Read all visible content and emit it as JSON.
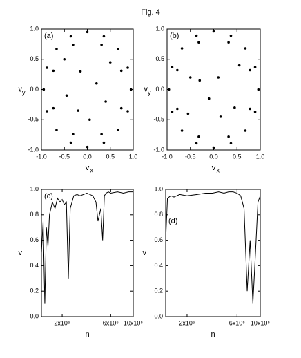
{
  "title": "Fig. 4",
  "chart_data": [
    {
      "type": "scatter",
      "label": "(a)",
      "color": "#000000",
      "xlabel": "v",
      "xlabel_sub": "x",
      "ylabel": "v",
      "ylabel_sub": "y",
      "xlim": [
        -1,
        1
      ],
      "ylim": [
        -1,
        1
      ],
      "xticks": [
        {
          "value": -1,
          "label": "-1.0"
        },
        {
          "value": -0.5,
          "label": "-0.5"
        },
        {
          "value": 0,
          "label": "0.0"
        },
        {
          "value": 0.5,
          "label": "0.5"
        },
        {
          "value": 1,
          "label": "1.0"
        }
      ],
      "yticks": [
        {
          "value": -1,
          "label": "-1.0"
        },
        {
          "value": -0.5,
          "label": "-0.5"
        },
        {
          "value": 0,
          "label": "0.0"
        },
        {
          "value": 0.5,
          "label": "0.5"
        },
        {
          "value": 1,
          "label": "1.0"
        }
      ],
      "x": [
        0.95,
        0.88,
        0.67,
        0.36,
        0,
        -0.36,
        -0.67,
        -0.88,
        -0.95,
        -0.88,
        -0.67,
        -0.36,
        0,
        0.36,
        0.67,
        0.88,
        0.74,
        0.31,
        -0.31,
        -0.74,
        -0.74,
        -0.31,
        0.31,
        0.74,
        0.2,
        -0.15,
        0.4,
        -0.45,
        0.05,
        0.5,
        -0.5,
        -0.2
      ],
      "values": [
        0,
        0.36,
        0.67,
        0.88,
        0.95,
        0.88,
        0.67,
        0.36,
        0,
        -0.36,
        -0.67,
        -0.88,
        -0.95,
        -0.88,
        -0.67,
        -0.36,
        0.31,
        0.74,
        0.74,
        0.31,
        -0.31,
        -0.74,
        -0.74,
        -0.31,
        0.1,
        0.3,
        -0.2,
        -0.1,
        -0.5,
        0.45,
        0.5,
        -0.35
      ]
    },
    {
      "type": "scatter",
      "label": "(b)",
      "color": "#000000",
      "xlabel": "v",
      "xlabel_sub": "x",
      "ylabel": "v",
      "ylabel_sub": "y",
      "xlim": [
        -1,
        1
      ],
      "ylim": [
        -1,
        1
      ],
      "xticks": [
        {
          "value": -1,
          "label": "-1.0"
        },
        {
          "value": -0.5,
          "label": "-0.5"
        },
        {
          "value": 0,
          "label": "0.0"
        },
        {
          "value": 0.5,
          "label": "0.5"
        },
        {
          "value": 1,
          "label": "1.0"
        }
      ],
      "yticks": [
        {
          "value": -1,
          "label": "-1.0"
        },
        {
          "value": -0.5,
          "label": "-0.5"
        },
        {
          "value": 0,
          "label": "0.0"
        },
        {
          "value": 0.5,
          "label": "0.5"
        },
        {
          "value": 1,
          "label": "1.0"
        }
      ],
      "x": [
        0.96,
        0.89,
        0.68,
        0.37,
        0,
        -0.37,
        -0.68,
        -0.89,
        -0.96,
        -0.89,
        -0.68,
        -0.37,
        0,
        0.37,
        0.68,
        0.89,
        0.78,
        0.32,
        -0.32,
        -0.78,
        -0.78,
        -0.32,
        0.32,
        0.78,
        0.1,
        -0.3,
        0.45,
        -0.5,
        0.15,
        0.55,
        -0.55,
        -0.1
      ],
      "values": [
        0,
        0.37,
        0.68,
        0.89,
        0.96,
        0.89,
        0.68,
        0.37,
        0,
        -0.37,
        -0.68,
        -0.89,
        -0.96,
        -0.89,
        -0.68,
        -0.37,
        0.32,
        0.78,
        0.78,
        0.32,
        -0.32,
        -0.78,
        -0.78,
        -0.32,
        0.2,
        0.15,
        -0.3,
        0.2,
        -0.45,
        0.4,
        -0.4,
        -0.15
      ]
    },
    {
      "type": "line",
      "label": "(c)",
      "color": "#000000",
      "xscale": "log",
      "xlabel": "n",
      "ylabel": "v",
      "xlim": [
        125000,
        1000000
      ],
      "ylim": [
        0,
        1
      ],
      "xticks": [
        {
          "value": 200000,
          "label": "2x10⁵"
        },
        {
          "value": 600000,
          "label": "6x10⁵"
        },
        {
          "value": 1000000,
          "label": "10x10⁵"
        }
      ],
      "yticks": [
        {
          "value": 0,
          "label": "0.0"
        },
        {
          "value": 0.2,
          "label": "0.2"
        },
        {
          "value": 0.4,
          "label": "0.4"
        },
        {
          "value": 0.6,
          "label": "0.6"
        },
        {
          "value": 0.8,
          "label": "0.8"
        },
        {
          "value": 1,
          "label": "1.0"
        }
      ],
      "x": [
        125000,
        130000,
        135000,
        140000,
        145000,
        150000,
        160000,
        170000,
        180000,
        190000,
        200000,
        210000,
        220000,
        230000,
        240000,
        260000,
        280000,
        300000,
        350000,
        400000,
        430000,
        450000,
        480000,
        500000,
        520000,
        540000,
        570000,
        600000,
        700000,
        800000,
        900000,
        1000000
      ],
      "values": [
        0.5,
        0.75,
        0.1,
        0.7,
        0.55,
        0.8,
        0.9,
        0.85,
        0.93,
        0.9,
        0.92,
        0.88,
        0.9,
        0.3,
        0.85,
        0.95,
        0.96,
        0.95,
        0.97,
        0.95,
        0.9,
        0.75,
        0.85,
        0.6,
        0.95,
        0.97,
        0.98,
        0.97,
        0.98,
        0.97,
        0.98,
        0.98
      ]
    },
    {
      "type": "line",
      "label": "(d)",
      "color": "#000000",
      "xscale": "log",
      "xlabel": "n",
      "ylabel": "v",
      "xlim": [
        125000,
        1000000
      ],
      "ylim": [
        0,
        1
      ],
      "xticks": [
        {
          "value": 200000,
          "label": "2x10⁵"
        },
        {
          "value": 600000,
          "label": "6x10⁵"
        },
        {
          "value": 1000000,
          "label": "10x10⁵"
        }
      ],
      "yticks": [
        {
          "value": 0,
          "label": "0.0"
        },
        {
          "value": 0.2,
          "label": "0.2"
        },
        {
          "value": 0.4,
          "label": "0.4"
        },
        {
          "value": 0.6,
          "label": "0.6"
        },
        {
          "value": 0.8,
          "label": "0.8"
        },
        {
          "value": 1,
          "label": "1.0"
        }
      ],
      "x": [
        125000,
        130000,
        140000,
        150000,
        170000,
        200000,
        250000,
        300000,
        350000,
        400000,
        450000,
        500000,
        550000,
        600000,
        650000,
        700000,
        750000,
        800000,
        850000,
        900000,
        950000,
        1000000
      ],
      "values": [
        0.6,
        0.93,
        0.95,
        0.94,
        0.96,
        0.95,
        0.96,
        0.97,
        0.97,
        0.98,
        0.97,
        0.98,
        0.98,
        0.97,
        0.95,
        0.85,
        0.2,
        0.6,
        0.1,
        0.5,
        0.9,
        0.95
      ]
    }
  ]
}
